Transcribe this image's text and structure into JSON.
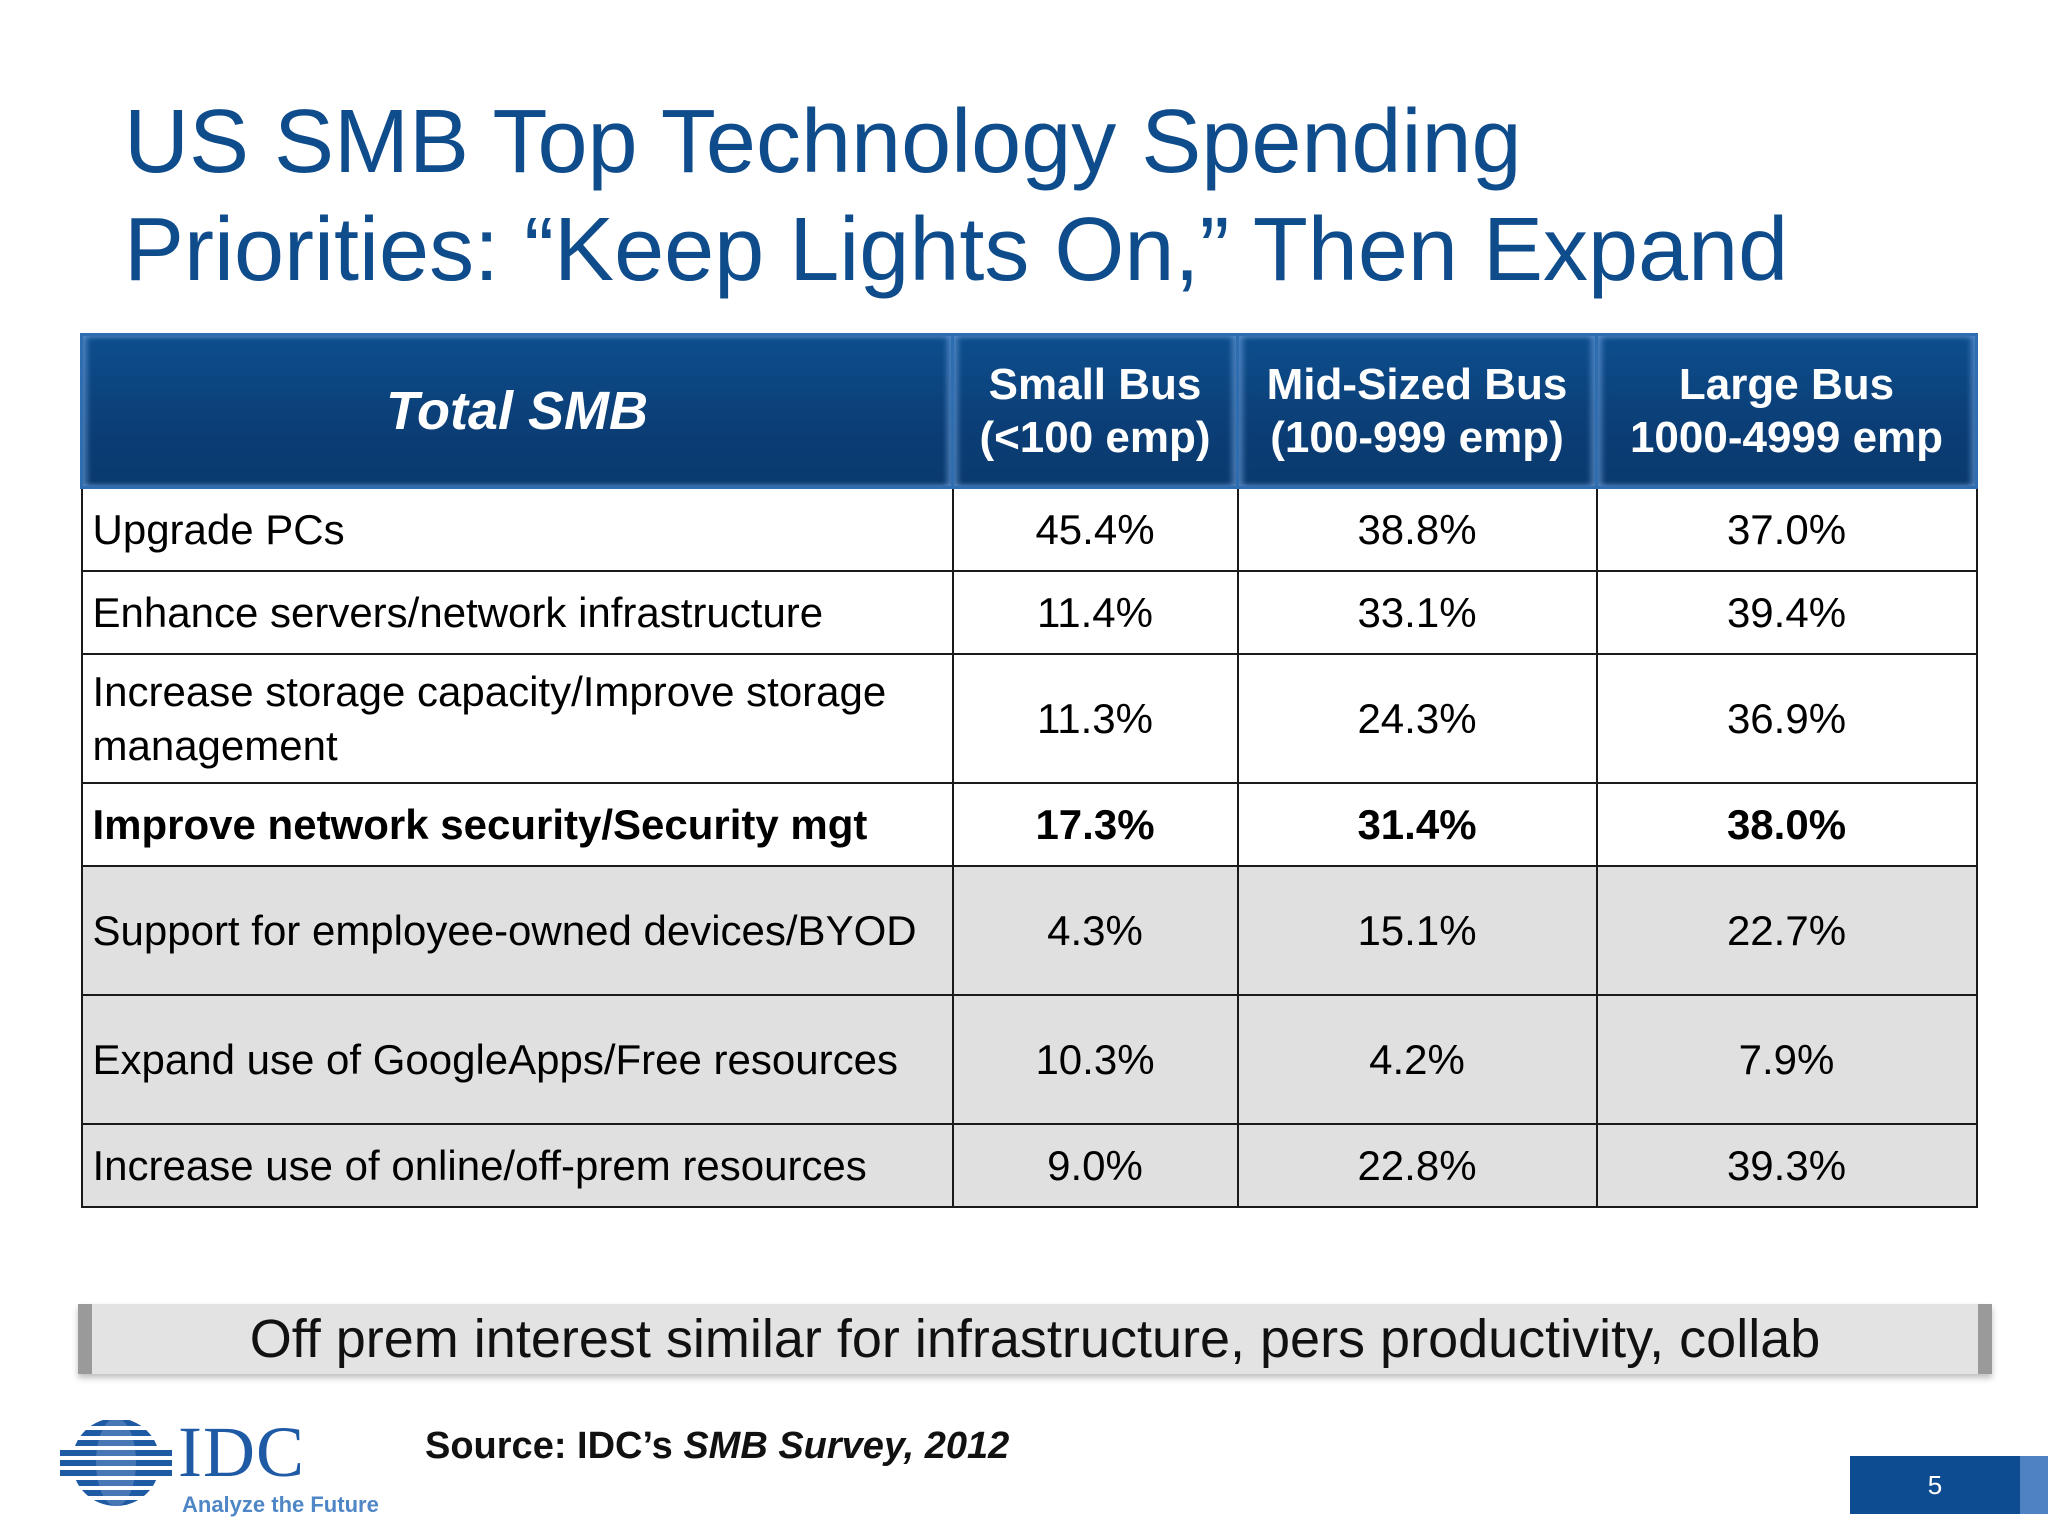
{
  "title": {
    "line1": "US SMB Top Technology Spending",
    "line2": "Priorities: “Keep Lights On,” Then Expand"
  },
  "table": {
    "header": {
      "segment": "Total SMB",
      "small_line1": "Small Bus",
      "small_line2": "(<100 emp)",
      "mid_line1": "Mid-Sized Bus",
      "mid_line2": "(100-999 emp)",
      "large_line1": "Large Bus",
      "large_line2": "1000-4999 emp"
    },
    "rows": [
      {
        "label": "Upgrade PCs",
        "small": "45.4%",
        "mid": "38.8%",
        "large": "37.0%"
      },
      {
        "label": "Enhance servers/network infrastructure",
        "small": "11.4%",
        "mid": "33.1%",
        "large": "39.4%"
      },
      {
        "label": "Increase storage capacity/Improve storage management",
        "small": "11.3%",
        "mid": "24.3%",
        "large": "36.9%"
      },
      {
        "label": "Improve network security/Security mgt",
        "small": "17.3%",
        "mid": "31.4%",
        "large": "38.0%"
      },
      {
        "label": "Support for employee-owned devices/BYOD",
        "small": "4.3%",
        "mid": "15.1%",
        "large": "22.7%"
      },
      {
        "label": "Expand use of GoogleApps/Free resources",
        "small": "10.3%",
        "mid": "4.2%",
        "large": "7.9%"
      },
      {
        "label": "Increase use of online/off-prem resources",
        "small": "9.0%",
        "mid": "22.8%",
        "large": "39.3%"
      }
    ]
  },
  "callout": "Off prem interest similar for infrastructure, pers productivity, collab",
  "logo": {
    "name": "IDC",
    "tagline": "Analyze the Future"
  },
  "source": {
    "prefix": "Source: IDC’s",
    "italic": "SMB Survey, 2012"
  },
  "page_number": "5",
  "colors": {
    "title": "#0f4c8c",
    "header_bg": "#0b3e76",
    "shaded_row": "#e0e0e0",
    "page_box": "#0e4c92"
  }
}
